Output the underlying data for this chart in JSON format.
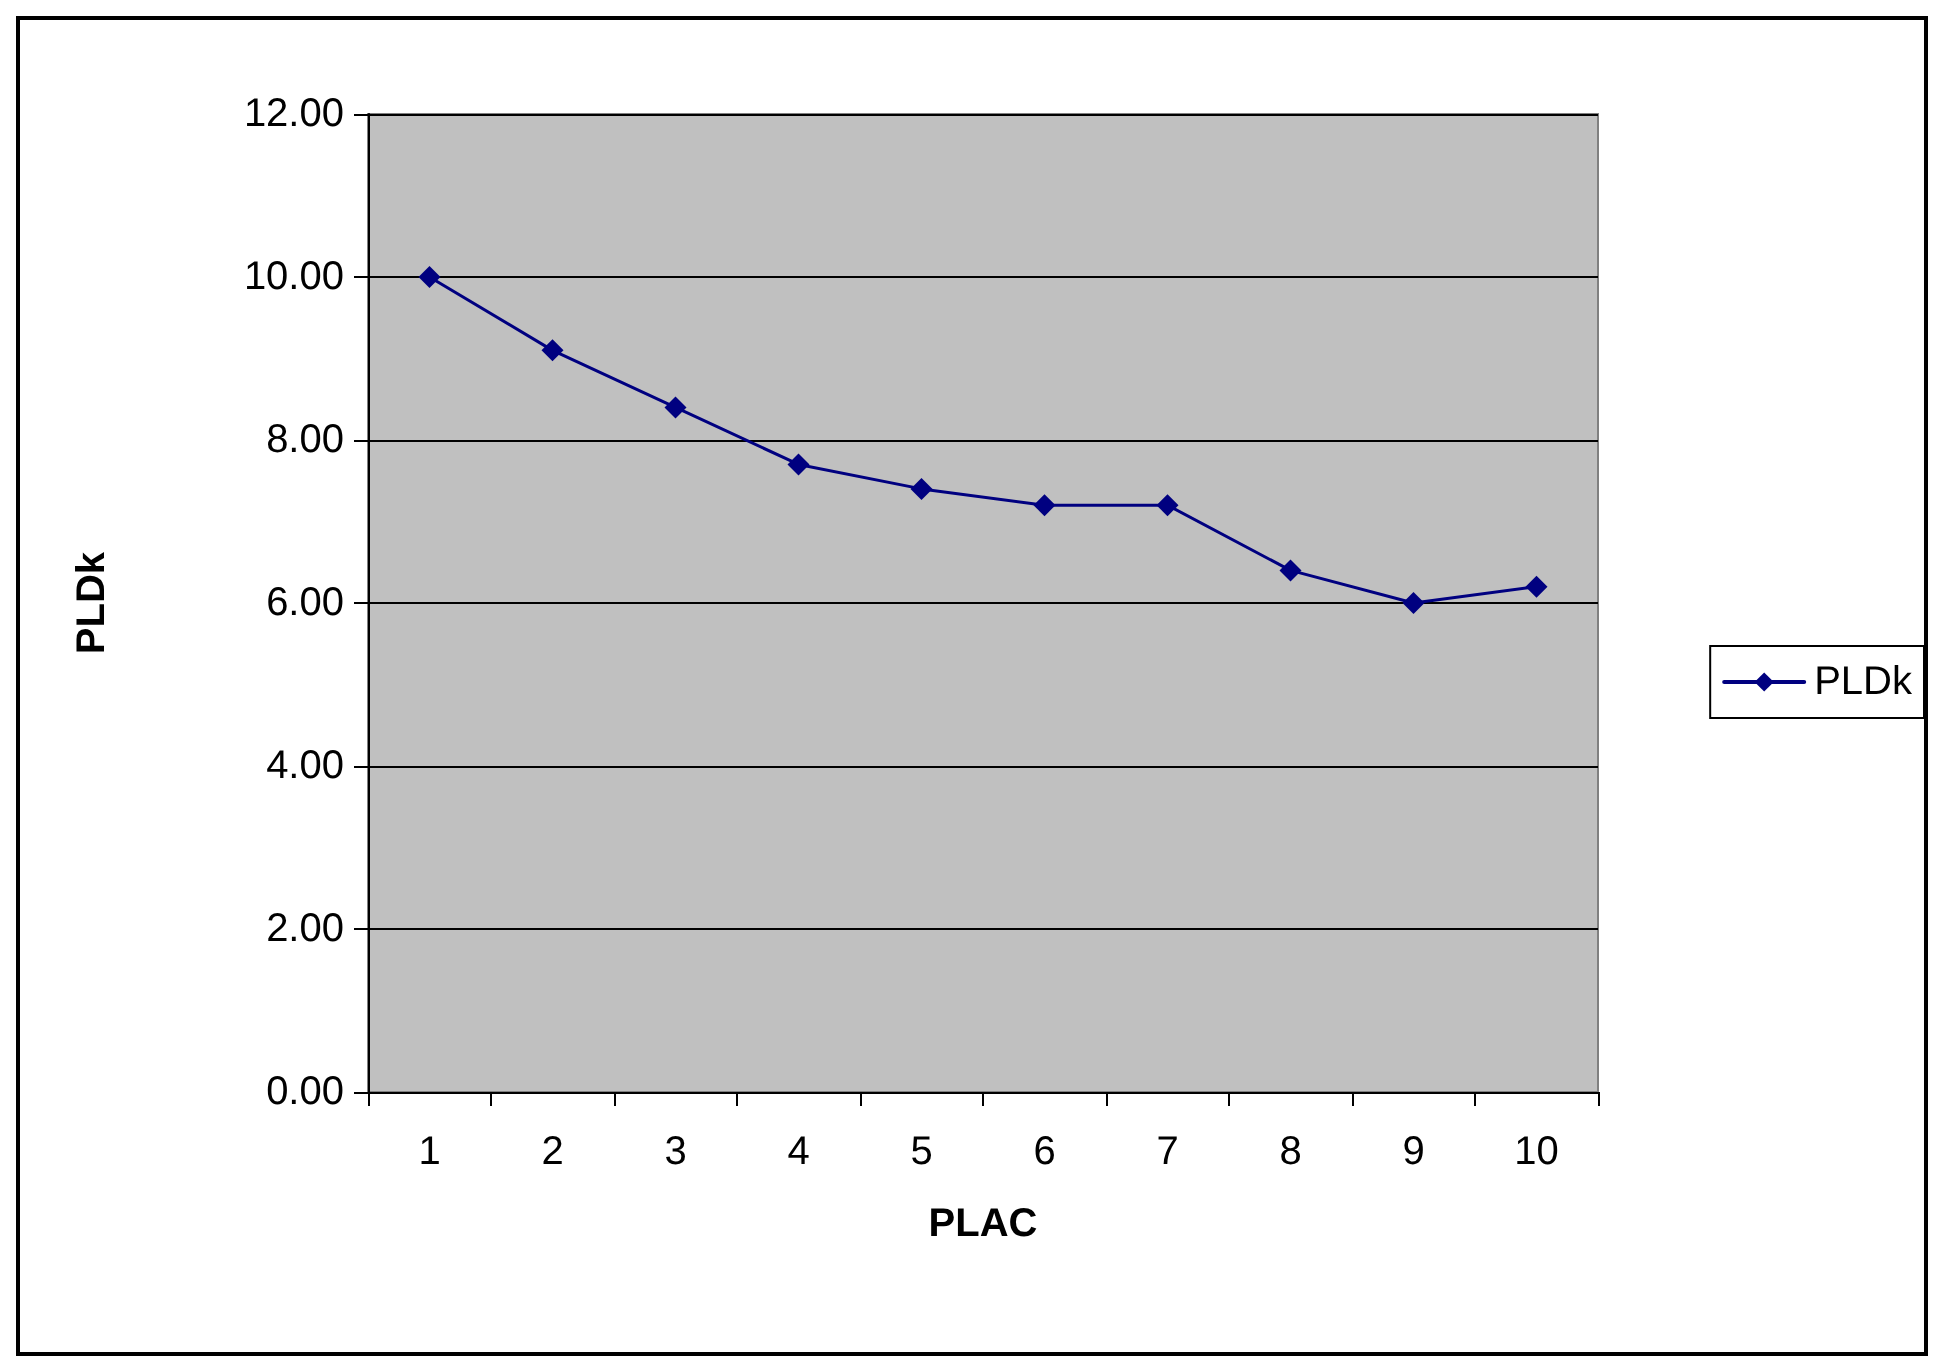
{
  "chart_data": {
    "type": "line",
    "xlabel": "PLAC",
    "ylabel": "PLDk",
    "categories": [
      "1",
      "2",
      "3",
      "4",
      "5",
      "6",
      "7",
      "8",
      "9",
      "10"
    ],
    "series": [
      {
        "name": "PLDk",
        "color": "#000080",
        "values": [
          10.0,
          9.1,
          8.4,
          7.7,
          7.4,
          7.2,
          7.2,
          6.4,
          6.0,
          6.2
        ]
      }
    ],
    "ylim": [
      0,
      12
    ],
    "yticks": [
      {
        "value": 0,
        "label": "0.00"
      },
      {
        "value": 2,
        "label": "2.00"
      },
      {
        "value": 4,
        "label": "4.00"
      },
      {
        "value": 6,
        "label": "6.00"
      },
      {
        "value": 8,
        "label": "8.00"
      },
      {
        "value": 10,
        "label": "10.00"
      },
      {
        "value": 12,
        "label": "12.00"
      }
    ],
    "grid": "y",
    "legend": "right",
    "marker": "diamond",
    "line_style": "solid"
  }
}
